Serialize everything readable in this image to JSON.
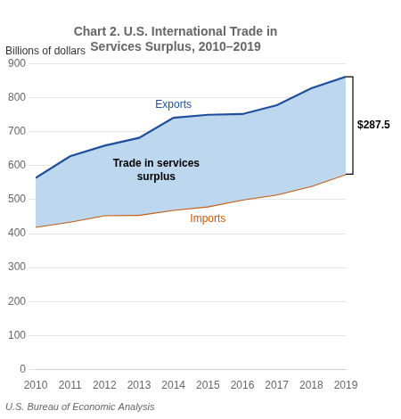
{
  "chart_data": {
    "type": "line",
    "title": "Chart 2. U.S. International Trade in\nServices Surplus, 2010–2019",
    "ylabel": "Billions of dollars",
    "footnote": "U.S. Bureau of Economic Analysis",
    "x": [
      2010,
      2011,
      2012,
      2013,
      2014,
      2015,
      2016,
      2017,
      2018,
      2019
    ],
    "series": [
      {
        "name": "Exports",
        "color": "#1f4e9b",
        "values": [
          564,
          628,
          659,
          682,
          741,
          750,
          752,
          778,
          828,
          862
        ]
      },
      {
        "name": "Imports",
        "color": "#c55a11",
        "values": [
          420,
          435,
          454,
          455,
          470,
          480,
          500,
          515,
          540,
          575
        ]
      }
    ],
    "color": "#bdd7ee",
    "xlim": [
      2010,
      2019
    ],
    "xticks": [
      2010,
      2011,
      2012,
      2013,
      2014,
      2015,
      2016,
      2017,
      2018,
      2019
    ],
    "ylim": [
      0,
      900
    ],
    "yticks": [
      0,
      100,
      200,
      300,
      400,
      500,
      600,
      700,
      800,
      900
    ],
    "grid": true,
    "annotations": [
      {
        "text": "Trade in services\nsurplus"
      },
      {
        "text": "$287.5"
      }
    ]
  }
}
